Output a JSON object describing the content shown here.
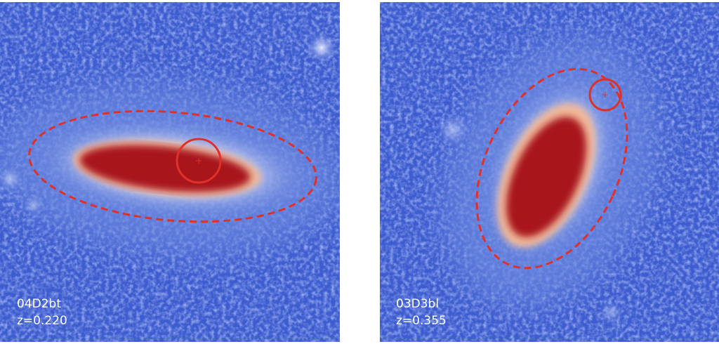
{
  "panels": [
    {
      "name": "04D2bt",
      "redshift": "z=0.220"
    },
    {
      "name": "03D3bl",
      "redshift": "z=0.355"
    }
  ]
}
